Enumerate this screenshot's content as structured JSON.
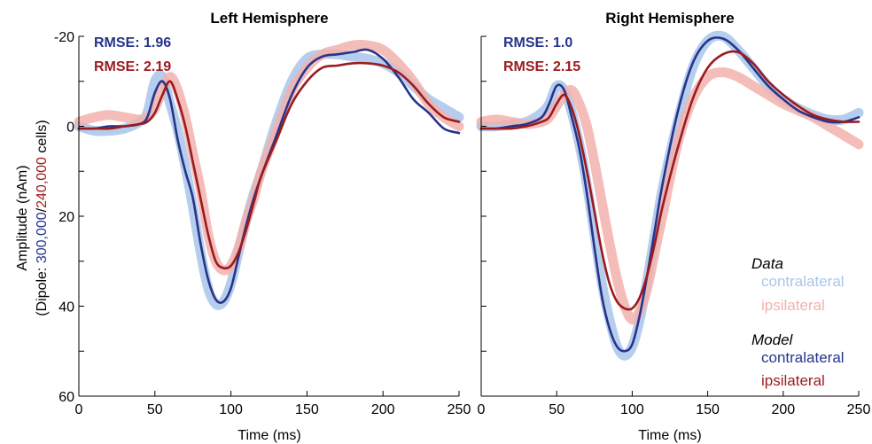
{
  "colors": {
    "data_contra": "#a9c6ea",
    "data_ipsi": "#f2b1ad",
    "model_contra": "#27348b",
    "model_ipsi": "#9b1b1f",
    "axis": "#000000"
  },
  "ylabel": {
    "line1": "Amplitude (nAm)",
    "prefix": "(Dipole: ",
    "contra_count": "300,000",
    "slash": "/",
    "ipsi_count": "240,000",
    "suffix": " cells)"
  },
  "legend": {
    "data_title": "Data",
    "data_contra": "contralateral",
    "data_ipsi": "ipsilateral",
    "model_title": "Model",
    "model_contra": "contralateral",
    "model_ipsi": "ipsilateral"
  },
  "chart_data": [
    {
      "type": "line",
      "title": "Left Hemisphere",
      "xlabel": "Time (ms)",
      "ylabel": "Amplitude (nAm) (Dipole: 300,000/240,000 cells)",
      "xlim": [
        0,
        250
      ],
      "ylim": [
        60,
        -20
      ],
      "y_inverted": true,
      "xticks": [
        "0",
        "50",
        "100",
        "150",
        "200",
        "250"
      ],
      "yticks": [
        "-20",
        "0",
        "20",
        "40",
        "60"
      ],
      "annotations": [
        {
          "text": "RMSE: 1.96",
          "series": "contralateral"
        },
        {
          "text": "RMSE: 2.19",
          "series": "ipsilateral"
        }
      ],
      "series": [
        {
          "group": "Data",
          "name": "contralateral",
          "role": "data_contra",
          "x": [
            0,
            10,
            20,
            30,
            40,
            45,
            50,
            55,
            60,
            65,
            70,
            75,
            80,
            85,
            90,
            95,
            100,
            105,
            110,
            115,
            120,
            130,
            140,
            150,
            160,
            170,
            180,
            190,
            200,
            210,
            220,
            230,
            240,
            250
          ],
          "y": [
            0,
            1,
            1,
            0.5,
            -1,
            -3,
            -10,
            -11,
            -5,
            1,
            9,
            18,
            28,
            36,
            39.5,
            39,
            35,
            28,
            21,
            15,
            10,
            -1,
            -10,
            -15,
            -16,
            -16,
            -15.5,
            -15,
            -14,
            -12,
            -9,
            -6,
            -4,
            -2
          ]
        },
        {
          "group": "Data",
          "name": "ipsilateral",
          "role": "data_ipsi",
          "x": [
            0,
            10,
            20,
            30,
            40,
            45,
            50,
            55,
            60,
            65,
            70,
            75,
            80,
            85,
            90,
            95,
            100,
            105,
            110,
            115,
            120,
            130,
            140,
            150,
            160,
            170,
            180,
            190,
            200,
            210,
            220,
            230,
            240,
            250
          ],
          "y": [
            -1,
            -2,
            -2.5,
            -2,
            -1.5,
            -2,
            -4,
            -8,
            -11,
            -8,
            -2,
            6,
            14,
            24,
            30,
            32,
            31,
            27,
            21,
            16,
            10,
            1,
            -8,
            -13,
            -16,
            -17,
            -18,
            -18,
            -17,
            -14,
            -10,
            -5,
            -2,
            0
          ]
        },
        {
          "group": "Model",
          "name": "contralateral",
          "role": "model_contra",
          "x": [
            0,
            10,
            20,
            30,
            40,
            45,
            50,
            55,
            60,
            65,
            70,
            75,
            80,
            85,
            90,
            95,
            100,
            105,
            110,
            115,
            120,
            130,
            140,
            150,
            160,
            170,
            180,
            190,
            200,
            210,
            220,
            230,
            240,
            250
          ],
          "y": [
            0.5,
            0.5,
            0,
            0,
            -0.5,
            -2,
            -7.5,
            -10,
            -6,
            3,
            10,
            16,
            26,
            34,
            38.5,
            39,
            36,
            29,
            22,
            16,
            11,
            2,
            -7,
            -13,
            -15.5,
            -16,
            -16.5,
            -17,
            -15,
            -11,
            -6,
            -3,
            0.5,
            1.5
          ]
        },
        {
          "group": "Model",
          "name": "ipsilateral",
          "role": "model_ipsi",
          "x": [
            0,
            10,
            20,
            30,
            40,
            45,
            50,
            55,
            60,
            65,
            70,
            75,
            80,
            85,
            90,
            95,
            100,
            105,
            110,
            115,
            120,
            130,
            140,
            150,
            160,
            170,
            180,
            190,
            200,
            210,
            220,
            230,
            240,
            250
          ],
          "y": [
            0.5,
            0.5,
            0.5,
            0,
            -0.5,
            -1,
            -3,
            -7,
            -10,
            -6,
            0,
            8,
            16,
            24,
            30,
            31.5,
            31,
            28,
            23,
            17,
            11,
            3,
            -5,
            -10,
            -13,
            -13.5,
            -14,
            -14,
            -13.5,
            -12,
            -9,
            -5,
            -2,
            -1
          ]
        }
      ]
    },
    {
      "type": "line",
      "title": "Right Hemisphere",
      "xlabel": "Time (ms)",
      "xlim": [
        0,
        250
      ],
      "ylim": [
        60,
        -20
      ],
      "y_inverted": true,
      "xticks": [
        "0",
        "50",
        "100",
        "150",
        "200",
        "250"
      ],
      "annotations": [
        {
          "text": "RMSE: 1.0",
          "series": "contralateral"
        },
        {
          "text": "RMSE: 2.15",
          "series": "ipsilateral"
        }
      ],
      "series": [
        {
          "group": "Data",
          "name": "contralateral",
          "role": "data_contra",
          "x": [
            0,
            10,
            20,
            30,
            40,
            45,
            50,
            55,
            60,
            65,
            70,
            75,
            80,
            85,
            90,
            95,
            100,
            105,
            110,
            115,
            120,
            130,
            140,
            150,
            160,
            170,
            180,
            190,
            200,
            210,
            220,
            230,
            240,
            250
          ],
          "y": [
            0,
            0,
            -0.5,
            -1,
            -3,
            -5,
            -9,
            -8,
            -3,
            4,
            13,
            24,
            35,
            43,
            49,
            51,
            49,
            43,
            34,
            24,
            14,
            -1,
            -13,
            -19,
            -20,
            -17,
            -13,
            -9,
            -6,
            -4,
            -2.5,
            -1.5,
            -1.5,
            -3
          ]
        },
        {
          "group": "Data",
          "name": "ipsilateral",
          "role": "data_ipsi",
          "x": [
            0,
            10,
            20,
            30,
            40,
            45,
            50,
            55,
            60,
            65,
            70,
            75,
            80,
            85,
            90,
            95,
            100,
            105,
            110,
            115,
            120,
            130,
            140,
            150,
            160,
            170,
            180,
            190,
            200,
            210,
            220,
            230,
            240,
            250
          ],
          "y": [
            -1,
            -1.5,
            -1,
            -0.5,
            -1,
            -2,
            -4.5,
            -7,
            -8,
            -5,
            0,
            8,
            17,
            26,
            34,
            40,
            43,
            41,
            36,
            28,
            20,
            4,
            -6,
            -11,
            -12,
            -11,
            -9,
            -7,
            -5,
            -3.5,
            -2,
            0,
            2,
            4
          ]
        },
        {
          "group": "Model",
          "name": "contralateral",
          "role": "model_contra",
          "x": [
            0,
            10,
            20,
            30,
            40,
            45,
            50,
            55,
            60,
            65,
            70,
            75,
            80,
            85,
            90,
            95,
            100,
            105,
            110,
            115,
            120,
            130,
            140,
            150,
            160,
            170,
            180,
            190,
            200,
            210,
            220,
            230,
            240,
            250
          ],
          "y": [
            0.5,
            0.5,
            0,
            -0.5,
            -2,
            -5,
            -9,
            -8,
            -2,
            5,
            15,
            27,
            38,
            45,
            49,
            50,
            48.5,
            42,
            33,
            23,
            13,
            -3,
            -14,
            -19,
            -19.5,
            -17,
            -13,
            -9,
            -6,
            -3.5,
            -2,
            -1,
            -1,
            -2
          ]
        },
        {
          "group": "Model",
          "name": "ipsilateral",
          "role": "model_ipsi",
          "x": [
            0,
            10,
            20,
            30,
            40,
            45,
            50,
            55,
            60,
            65,
            70,
            75,
            80,
            85,
            90,
            95,
            100,
            105,
            110,
            115,
            120,
            130,
            140,
            150,
            160,
            170,
            180,
            190,
            200,
            210,
            220,
            230,
            240,
            250
          ],
          "y": [
            0.5,
            0.5,
            0.5,
            0,
            -1,
            -2,
            -5,
            -7,
            -4,
            2,
            10,
            19,
            28,
            35,
            39,
            40.5,
            40.5,
            38,
            33,
            26,
            18,
            5,
            -6,
            -13,
            -16,
            -16.5,
            -14,
            -10,
            -7,
            -4.5,
            -2.5,
            -1.5,
            -1,
            -1
          ]
        }
      ]
    }
  ]
}
